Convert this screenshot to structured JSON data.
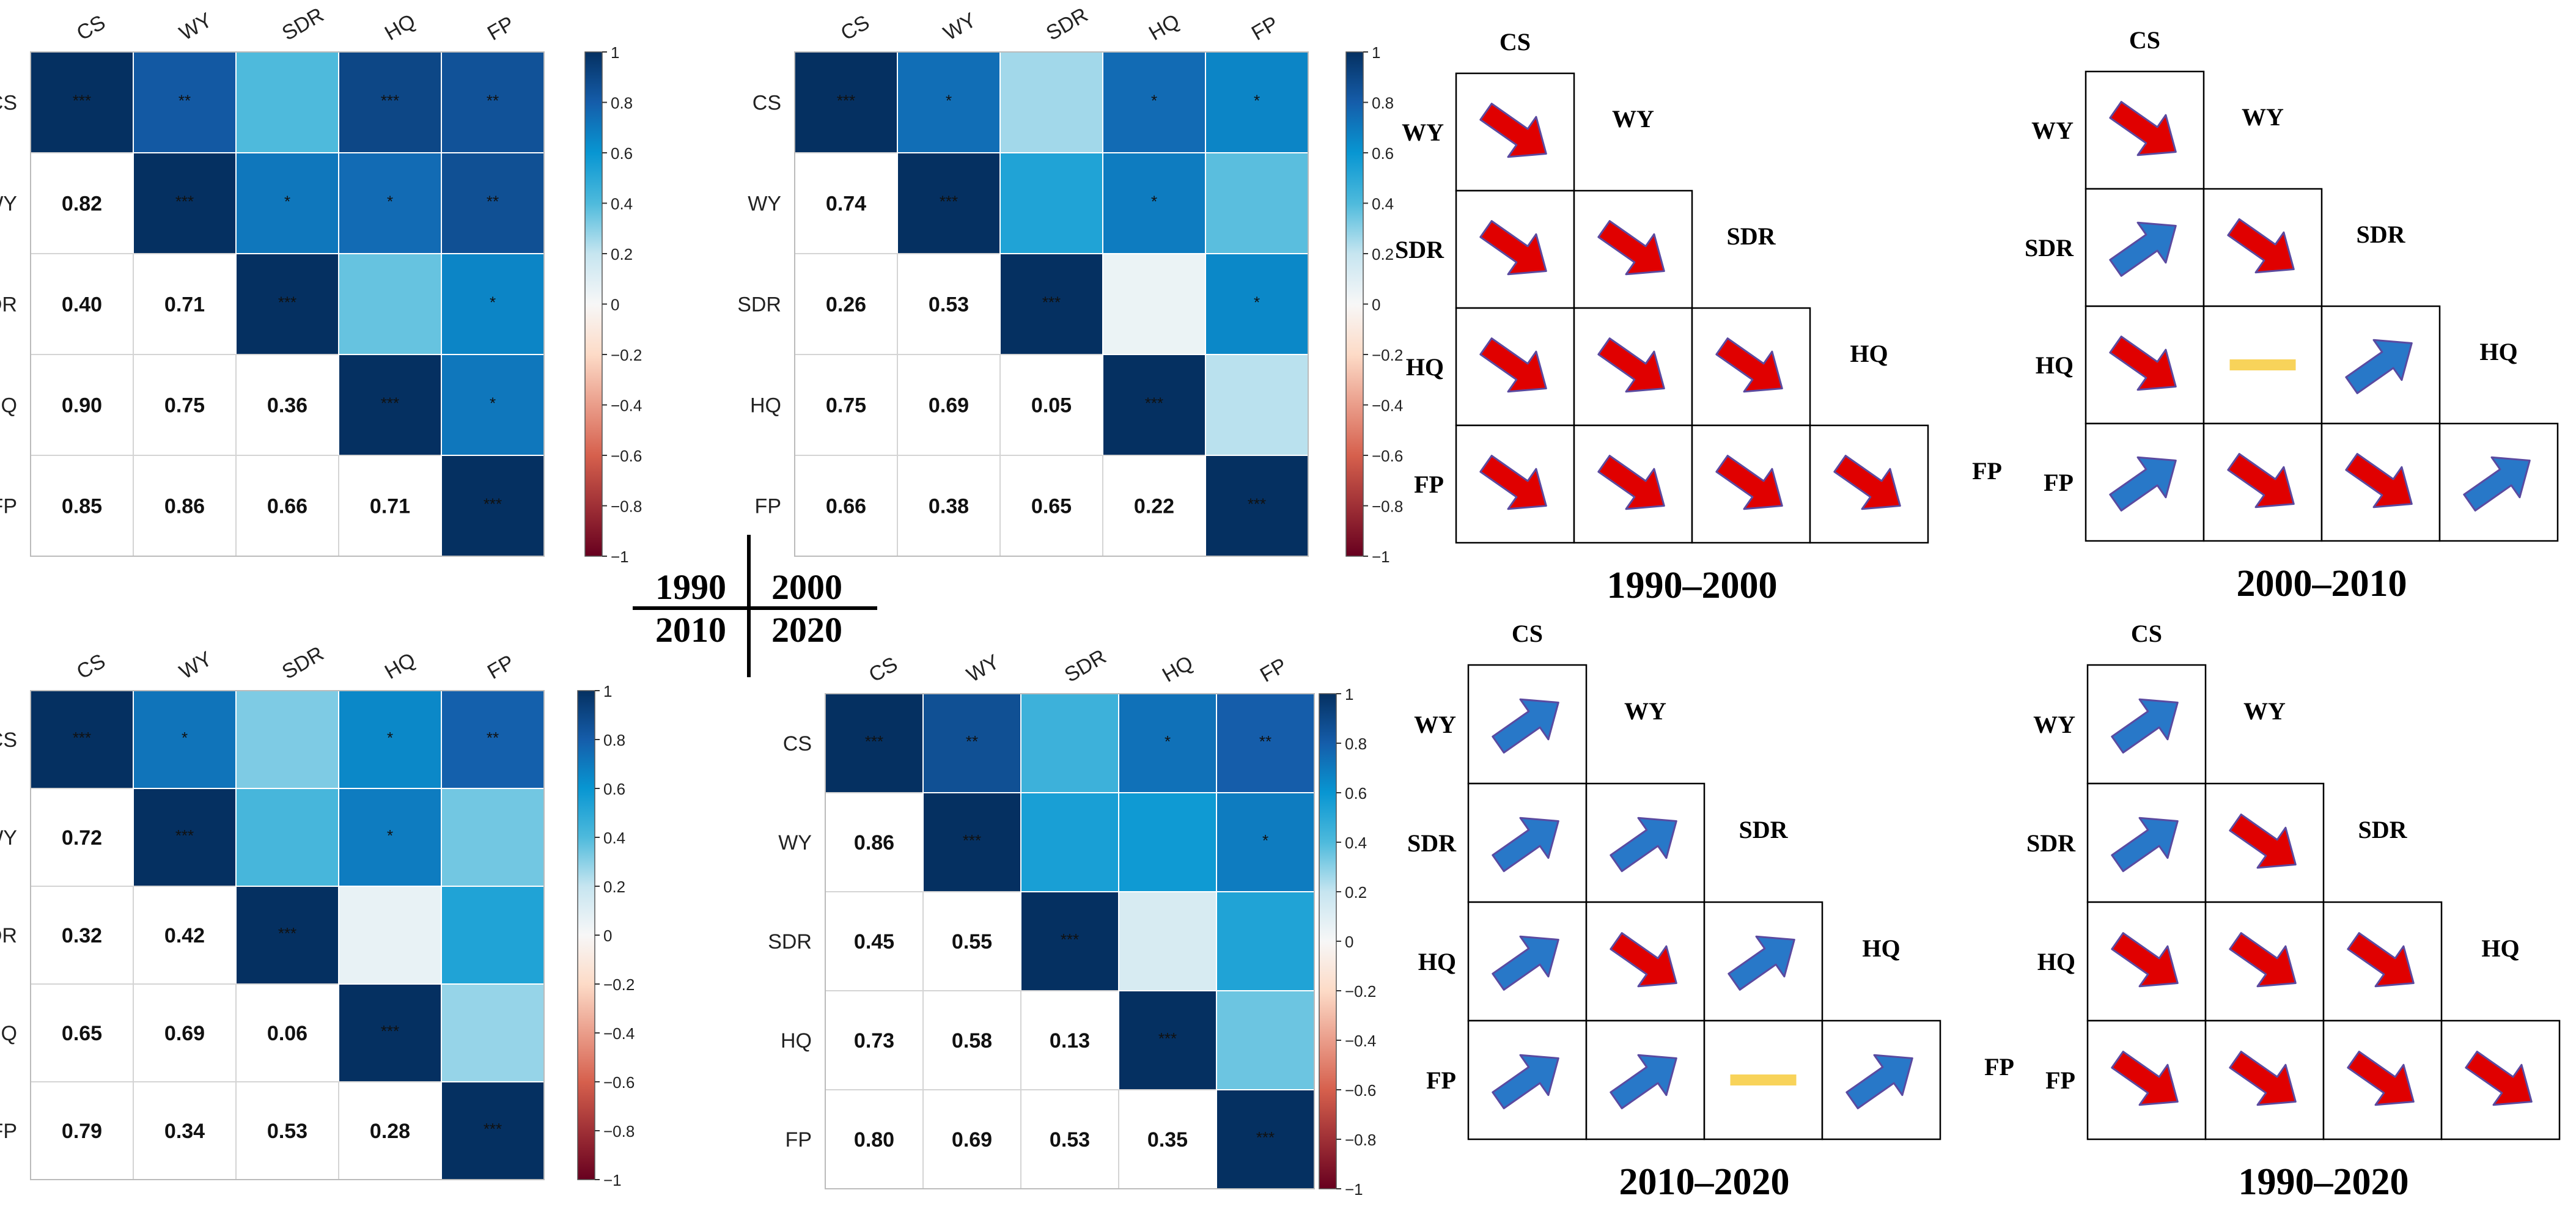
{
  "variables": [
    "CS",
    "WY",
    "SDR",
    "HQ",
    "FP"
  ],
  "colorbar_ticks": [
    "1",
    "0.8",
    "0.6",
    "0.4",
    "0.2",
    "0",
    "−0.2",
    "−0.4",
    "−0.6",
    "−0.8",
    "−1"
  ],
  "palette": {
    "pos_strong": "#053061",
    "neutral": "#f7f7f7",
    "neg_strong": "#67001f"
  },
  "year_grid": {
    "top_left": "1990",
    "top_right": "2000",
    "bottom_left": "2010",
    "bottom_right": "2020"
  },
  "chart_data": [
    {
      "type": "heatmap",
      "period": "1990",
      "labels": [
        "CS",
        "WY",
        "SDR",
        "HQ",
        "FP"
      ],
      "lower": [
        [
          1,
          0.82,
          0.4,
          0.9,
          0.85
        ],
        [
          0.82,
          1,
          0.71,
          0.75,
          0.86
        ],
        [
          0.4,
          0.71,
          1,
          0.36,
          0.66
        ],
        [
          0.9,
          0.75,
          0.36,
          1,
          0.71
        ],
        [
          0.85,
          0.86,
          0.66,
          0.71,
          1
        ]
      ],
      "stars": [
        [
          "***",
          "**",
          "",
          "***",
          "**"
        ],
        [
          "**",
          "***",
          "*",
          "*",
          "**"
        ],
        [
          "",
          "*",
          "***",
          "",
          "*"
        ],
        [
          "***",
          "*",
          "",
          "***",
          "*"
        ],
        [
          "**",
          "**",
          "*",
          "*",
          "***"
        ]
      ],
      "clim": [
        -1,
        1
      ]
    },
    {
      "type": "heatmap",
      "period": "2000",
      "labels": [
        "CS",
        "WY",
        "SDR",
        "HQ",
        "FP"
      ],
      "lower": [
        [
          1,
          0.74,
          0.26,
          0.75,
          0.66
        ],
        [
          0.74,
          1,
          0.53,
          0.69,
          0.38
        ],
        [
          0.26,
          0.53,
          1,
          0.05,
          0.65
        ],
        [
          0.75,
          0.69,
          0.05,
          1,
          0.22
        ],
        [
          0.66,
          0.38,
          0.65,
          0.22,
          1
        ]
      ],
      "stars": [
        [
          "***",
          "*",
          "",
          "*",
          "*"
        ],
        [
          "*",
          "***",
          "",
          "*",
          ""
        ],
        [
          "",
          "",
          "***",
          "",
          "*"
        ],
        [
          "*",
          "*",
          "",
          "***",
          ""
        ],
        [
          "*",
          "",
          "*",
          "",
          "***"
        ]
      ],
      "clim": [
        -1,
        1
      ]
    },
    {
      "type": "heatmap",
      "period": "2010",
      "labels": [
        "CS",
        "WY",
        "SDR",
        "HQ",
        "FP"
      ],
      "lower": [
        [
          1,
          0.72,
          0.32,
          0.65,
          0.79
        ],
        [
          0.72,
          1,
          0.42,
          0.69,
          0.34
        ],
        [
          0.32,
          0.42,
          1,
          0.06,
          0.53
        ],
        [
          0.65,
          0.69,
          0.06,
          1,
          0.28
        ],
        [
          0.79,
          0.34,
          0.53,
          0.28,
          1
        ]
      ],
      "stars": [
        [
          "***",
          "*",
          "",
          "*",
          "**"
        ],
        [
          "*",
          "***",
          "",
          "*",
          ""
        ],
        [
          "",
          "",
          "***",
          "",
          ""
        ],
        [
          "*",
          "*",
          "",
          "***",
          ""
        ],
        [
          "**",
          "",
          "",
          "",
          "***"
        ]
      ],
      "clim": [
        -1,
        1
      ]
    },
    {
      "type": "heatmap",
      "period": "2020",
      "labels": [
        "CS",
        "WY",
        "SDR",
        "HQ",
        "FP"
      ],
      "lower": [
        [
          1,
          0.86,
          0.45,
          0.73,
          0.8
        ],
        [
          0.86,
          1,
          0.55,
          0.58,
          0.69
        ],
        [
          0.45,
          0.55,
          1,
          0.13,
          0.53
        ],
        [
          0.73,
          0.58,
          0.13,
          1,
          0.35
        ],
        [
          0.8,
          0.69,
          0.53,
          0.35,
          1
        ]
      ],
      "stars": [
        [
          "***",
          "**",
          "",
          "*",
          "**"
        ],
        [
          "**",
          "***",
          "",
          "",
          "*"
        ],
        [
          "",
          "",
          "***",
          "",
          ""
        ],
        [
          "*",
          "",
          "",
          "***",
          ""
        ],
        [
          "**",
          "*",
          "",
          "",
          "***"
        ]
      ],
      "clim": [
        -1,
        1
      ]
    }
  ],
  "change_matrices": [
    {
      "title": "1990–2000",
      "labels": [
        "CS",
        "WY",
        "SDR",
        "HQ",
        "FP"
      ],
      "trend": [
        [
          "dec"
        ],
        [
          "dec",
          "dec"
        ],
        [
          "dec",
          "dec",
          "dec"
        ],
        [
          "dec",
          "dec",
          "dec",
          "dec"
        ]
      ]
    },
    {
      "title": "2000–2010",
      "labels": [
        "CS",
        "WY",
        "SDR",
        "HQ",
        "FP"
      ],
      "trend": [
        [
          "dec"
        ],
        [
          "inc",
          "dec"
        ],
        [
          "dec",
          "none",
          "inc"
        ],
        [
          "inc",
          "dec",
          "dec",
          "inc"
        ]
      ]
    },
    {
      "title": "2010–2020",
      "labels": [
        "CS",
        "WY",
        "SDR",
        "HQ",
        "FP"
      ],
      "trend": [
        [
          "inc"
        ],
        [
          "inc",
          "inc"
        ],
        [
          "inc",
          "dec",
          "inc"
        ],
        [
          "inc",
          "inc",
          "none",
          "inc"
        ]
      ]
    },
    {
      "title": "1990–2020",
      "labels": [
        "CS",
        "WY",
        "SDR",
        "HQ",
        "FP"
      ],
      "trend": [
        [
          "inc"
        ],
        [
          "inc",
          "dec"
        ],
        [
          "dec",
          "dec",
          "dec"
        ],
        [
          "dec",
          "dec",
          "dec",
          "dec"
        ]
      ]
    }
  ],
  "trend_colors": {
    "dec": "#e00000",
    "inc": "#2878c8",
    "none": "#f8d35a"
  }
}
